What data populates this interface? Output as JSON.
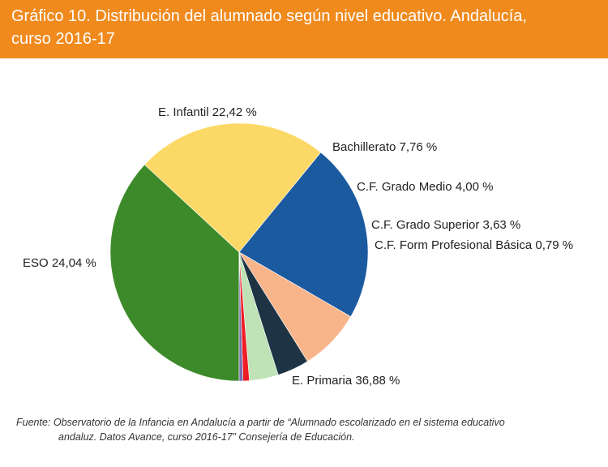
{
  "header": {
    "title_line1": "Gráfico 10. Distribución del alumnado según nivel educativo. Andalucía,",
    "title_line2": "curso 2016-17"
  },
  "chart_data": {
    "type": "pie",
    "title": "Gráfico 10. Distribución del alumnado según nivel educativo. Andalucía, curso 2016-17",
    "slices": [
      {
        "name": "E. Primaria",
        "value": 36.88,
        "label": "E. Primaria 36,88 %",
        "color": "#3d8a2a"
      },
      {
        "name": "ESO",
        "value": 24.04,
        "label": "ESO 24,04 %",
        "color": "#fcd966"
      },
      {
        "name": "E. Infantil",
        "value": 22.42,
        "label": "E. Infantil 22,42 %",
        "color": "#1c5aa0"
      },
      {
        "name": "Bachillerato",
        "value": 7.76,
        "label": "Bachillerato  7,76 %",
        "color": "#f9b58a"
      },
      {
        "name": "C.F. Grado Medio",
        "value": 4.0,
        "label": "C.F. Grado Medio 4,00 %",
        "color": "#1e3445"
      },
      {
        "name": "C.F. Grado Superior",
        "value": 3.63,
        "label": "C.F. Grado Superior  3,63 %",
        "color": "#bfe2b6"
      },
      {
        "name": "C.F. Form Profesional Básica",
        "value": 0.79,
        "label": "C.F. Form Profesional Básica 0,79 %",
        "color": "#ee1c24"
      },
      {
        "name": "",
        "value": 0.48,
        "label": "",
        "color": "#7a6fb0"
      }
    ]
  },
  "footnote": {
    "line1": "Fuente: Observatorio de la Infancia en Andalucía a partir de “Alumnado escolarizado en el sistema educativo",
    "line2": "andaluz. Datos Avance, curso 2016-17” Consejería de Educación."
  }
}
